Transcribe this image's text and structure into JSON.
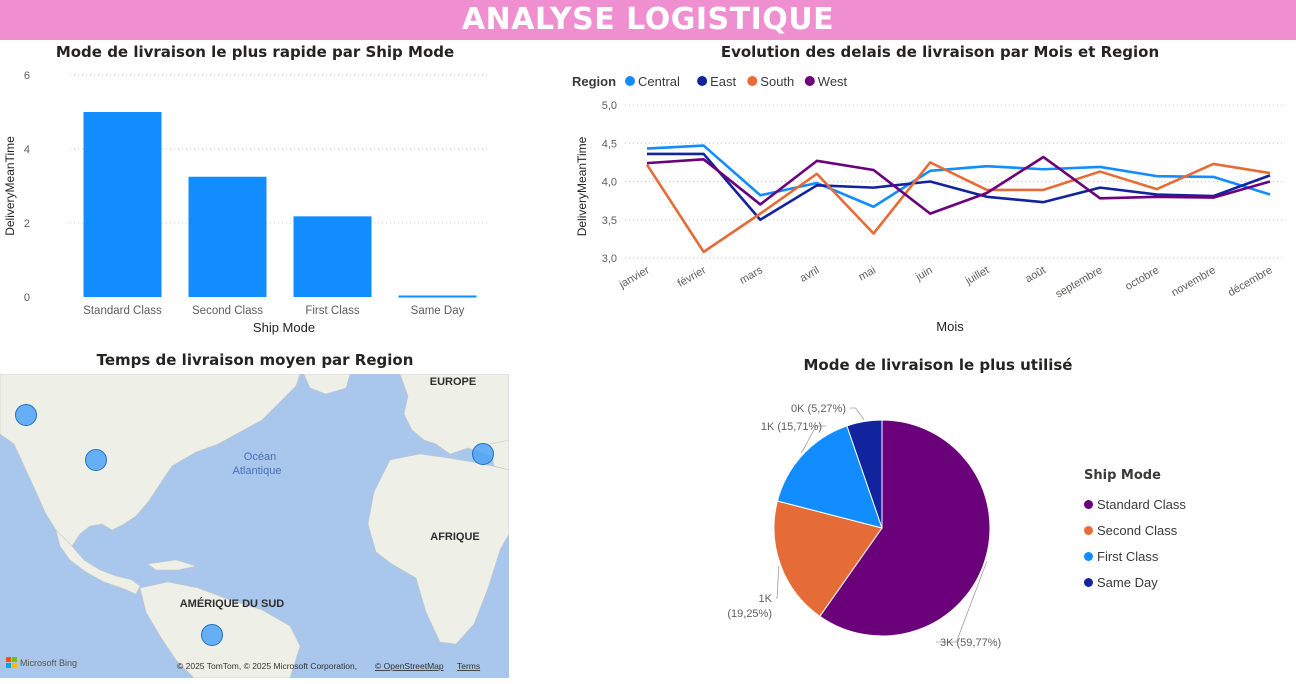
{
  "header": {
    "title": "ANALYSE LOGISTIQUE"
  },
  "colors": {
    "bar": "#118dff",
    "Central": "#118dff",
    "East": "#12239e",
    "South": "#e66c37",
    "West": "#6b007b",
    "banner": "#f08fd0"
  },
  "chart_data": [
    {
      "type": "bar",
      "title": "Mode de livraison le plus rapide par Ship Mode",
      "xlabel": "Ship Mode",
      "ylabel": "DeliveryMeanTime",
      "categories": [
        "Standard Class",
        "Second Class",
        "First Class",
        "Same Day"
      ],
      "values": [
        5.0,
        3.25,
        2.18,
        0.04
      ],
      "ylim": [
        0,
        6
      ],
      "yticks": [
        "0",
        "2",
        "4",
        "6"
      ],
      "grid": true
    },
    {
      "type": "line",
      "title": "Evolution des delais de livraison par Mois et Region",
      "xlabel": "Mois",
      "ylabel": "DeliveryMeanTime",
      "legend_title": "Region",
      "legend_position": "top-left",
      "categories": [
        "janvier",
        "février",
        "mars",
        "avril",
        "mai",
        "juin",
        "juillet",
        "août",
        "septembre",
        "octobre",
        "novembre",
        "décembre"
      ],
      "ylim": [
        3.0,
        5.0
      ],
      "yticks": [
        "3,0",
        "3,5",
        "4,0",
        "4,5",
        "5,0"
      ],
      "grid": true,
      "series": [
        {
          "name": "Central",
          "values": [
            4.43,
            4.47,
            3.82,
            3.98,
            3.67,
            4.14,
            4.2,
            4.16,
            4.19,
            4.07,
            4.06,
            3.83
          ]
        },
        {
          "name": "East",
          "values": [
            4.36,
            4.36,
            3.5,
            3.95,
            3.92,
            4.0,
            3.8,
            3.73,
            3.92,
            3.83,
            3.81,
            4.08
          ]
        },
        {
          "name": "South",
          "values": [
            4.22,
            3.08,
            3.58,
            4.1,
            3.32,
            4.25,
            3.89,
            3.89,
            4.13,
            3.9,
            4.23,
            4.11
          ]
        },
        {
          "name": "West",
          "values": [
            4.24,
            4.29,
            3.7,
            4.27,
            4.15,
            3.58,
            3.85,
            4.32,
            3.78,
            3.8,
            3.79,
            4.0
          ]
        }
      ]
    },
    {
      "type": "pie",
      "title": "Mode de livraison le plus utilisé",
      "legend_title": "Ship Mode",
      "legend_position": "right",
      "series": [
        {
          "name": "Standard Class",
          "value": 59.77,
          "label_a": "3K (59,77%)",
          "label_b": ""
        },
        {
          "name": "Second Class",
          "value": 19.25,
          "label_a": "1K",
          "label_b": "(19,25%)"
        },
        {
          "name": "First Class",
          "value": 15.71,
          "label_a": "1K (15,71%)",
          "label_b": ""
        },
        {
          "name": "Same Day",
          "value": 5.27,
          "label_a": "0K (5,27%)",
          "label_b": ""
        }
      ]
    }
  ],
  "map": {
    "title": "Temps de livraison moyen par Region",
    "labels": {
      "europe": "EUROPE",
      "ocean_1": "Océan",
      "ocean_2": "Atlantique",
      "afrique": "AFRIQUE",
      "amerique_sud": "AMÉRIQUE DU SUD"
    },
    "attribution": "© 2025 TomTom, © 2025 Microsoft Corporation,",
    "osm_link": "© OpenStreetMap",
    "terms_link": "Terms",
    "bing": "Microsoft Bing"
  }
}
